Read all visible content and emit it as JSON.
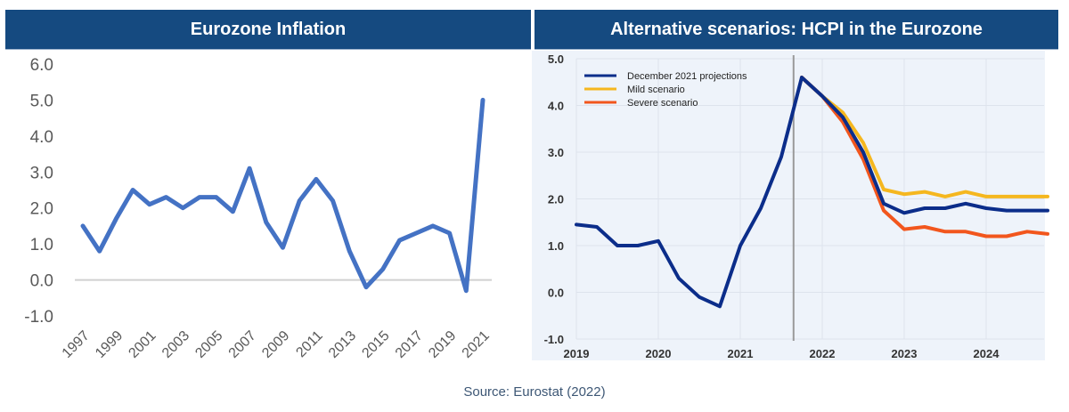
{
  "source": "Source: Eurostat (2022)",
  "colors": {
    "banner": "#154a80",
    "left_line": "#4472c4",
    "projection": "#0b2d8a",
    "mild": "#f5b71f",
    "severe": "#f2561d",
    "right_bg": "#eef3fa"
  },
  "chart_data": [
    {
      "type": "line",
      "title": "Eurozone Inflation",
      "xlabel": "",
      "ylabel": "",
      "ylim": [
        -1.0,
        6.0
      ],
      "yticks": [
        "6.0",
        "5.0",
        "4.0",
        "3.0",
        "2.0",
        "1.0",
        "0.0",
        "-1.0"
      ],
      "xtick_labels": [
        "1997",
        "1999",
        "2001",
        "2003",
        "2005",
        "2007",
        "2009",
        "2011",
        "2013",
        "2015",
        "2017",
        "2019",
        "2021"
      ],
      "grid": false,
      "x": [
        1997,
        1998,
        1999,
        2000,
        2001,
        2002,
        2003,
        2004,
        2005,
        2006,
        2007,
        2008,
        2009,
        2010,
        2011,
        2012,
        2013,
        2014,
        2015,
        2016,
        2017,
        2018,
        2019,
        2020,
        2021
      ],
      "series": [
        {
          "name": "Eurozone inflation",
          "values": [
            1.5,
            0.8,
            1.7,
            2.5,
            2.1,
            2.3,
            2.0,
            2.3,
            2.3,
            1.9,
            3.1,
            1.6,
            0.9,
            2.2,
            2.8,
            2.2,
            0.8,
            -0.2,
            0.3,
            1.1,
            1.3,
            1.5,
            1.3,
            -0.3,
            5.0
          ]
        }
      ]
    },
    {
      "type": "line",
      "title": "Alternative scenarios: HCPI in the Eurozone",
      "xlabel": "",
      "ylabel": "",
      "ylim": [
        -1.0,
        5.0
      ],
      "yticks": [
        "5.0",
        "4.0",
        "3.0",
        "2.0",
        "1.0",
        "0.0",
        "-1.0"
      ],
      "xlim": [
        2019,
        2024.75
      ],
      "xtick_labels": [
        "2019",
        "2020",
        "2021",
        "2022",
        "2023",
        "2024"
      ],
      "grid": true,
      "legend_position": "top-left",
      "vertical_marker_x": 2021.65,
      "series": [
        {
          "name": "December 2021 projections",
          "x": [
            2019.0,
            2019.25,
            2019.5,
            2019.75,
            2020.0,
            2020.25,
            2020.5,
            2020.75,
            2021.0,
            2021.25,
            2021.5,
            2021.75,
            2022.0,
            2022.25,
            2022.5,
            2022.75,
            2023.0,
            2023.25,
            2023.5,
            2023.75,
            2024.0,
            2024.25,
            2024.5,
            2024.75
          ],
          "values": [
            1.45,
            1.4,
            1.0,
            1.0,
            1.1,
            0.3,
            -0.1,
            -0.3,
            1.0,
            1.8,
            2.9,
            4.6,
            4.2,
            3.75,
            3.0,
            1.9,
            1.7,
            1.8,
            1.8,
            1.9,
            1.8,
            1.75,
            1.75,
            1.75
          ]
        },
        {
          "name": "Mild scenario",
          "x": [
            2021.75,
            2022.0,
            2022.25,
            2022.5,
            2022.75,
            2023.0,
            2023.25,
            2023.5,
            2023.75,
            2024.0,
            2024.25,
            2024.5,
            2024.75
          ],
          "values": [
            4.6,
            4.2,
            3.85,
            3.2,
            2.2,
            2.1,
            2.15,
            2.05,
            2.15,
            2.05,
            2.05,
            2.05,
            2.05
          ]
        },
        {
          "name": "Severe scenario",
          "x": [
            2021.75,
            2022.0,
            2022.25,
            2022.5,
            2022.75,
            2023.0,
            2023.25,
            2023.5,
            2023.75,
            2024.0,
            2024.25,
            2024.5,
            2024.75
          ],
          "values": [
            4.6,
            4.2,
            3.65,
            2.85,
            1.75,
            1.35,
            1.4,
            1.3,
            1.3,
            1.2,
            1.2,
            1.3,
            1.25
          ]
        }
      ]
    }
  ]
}
